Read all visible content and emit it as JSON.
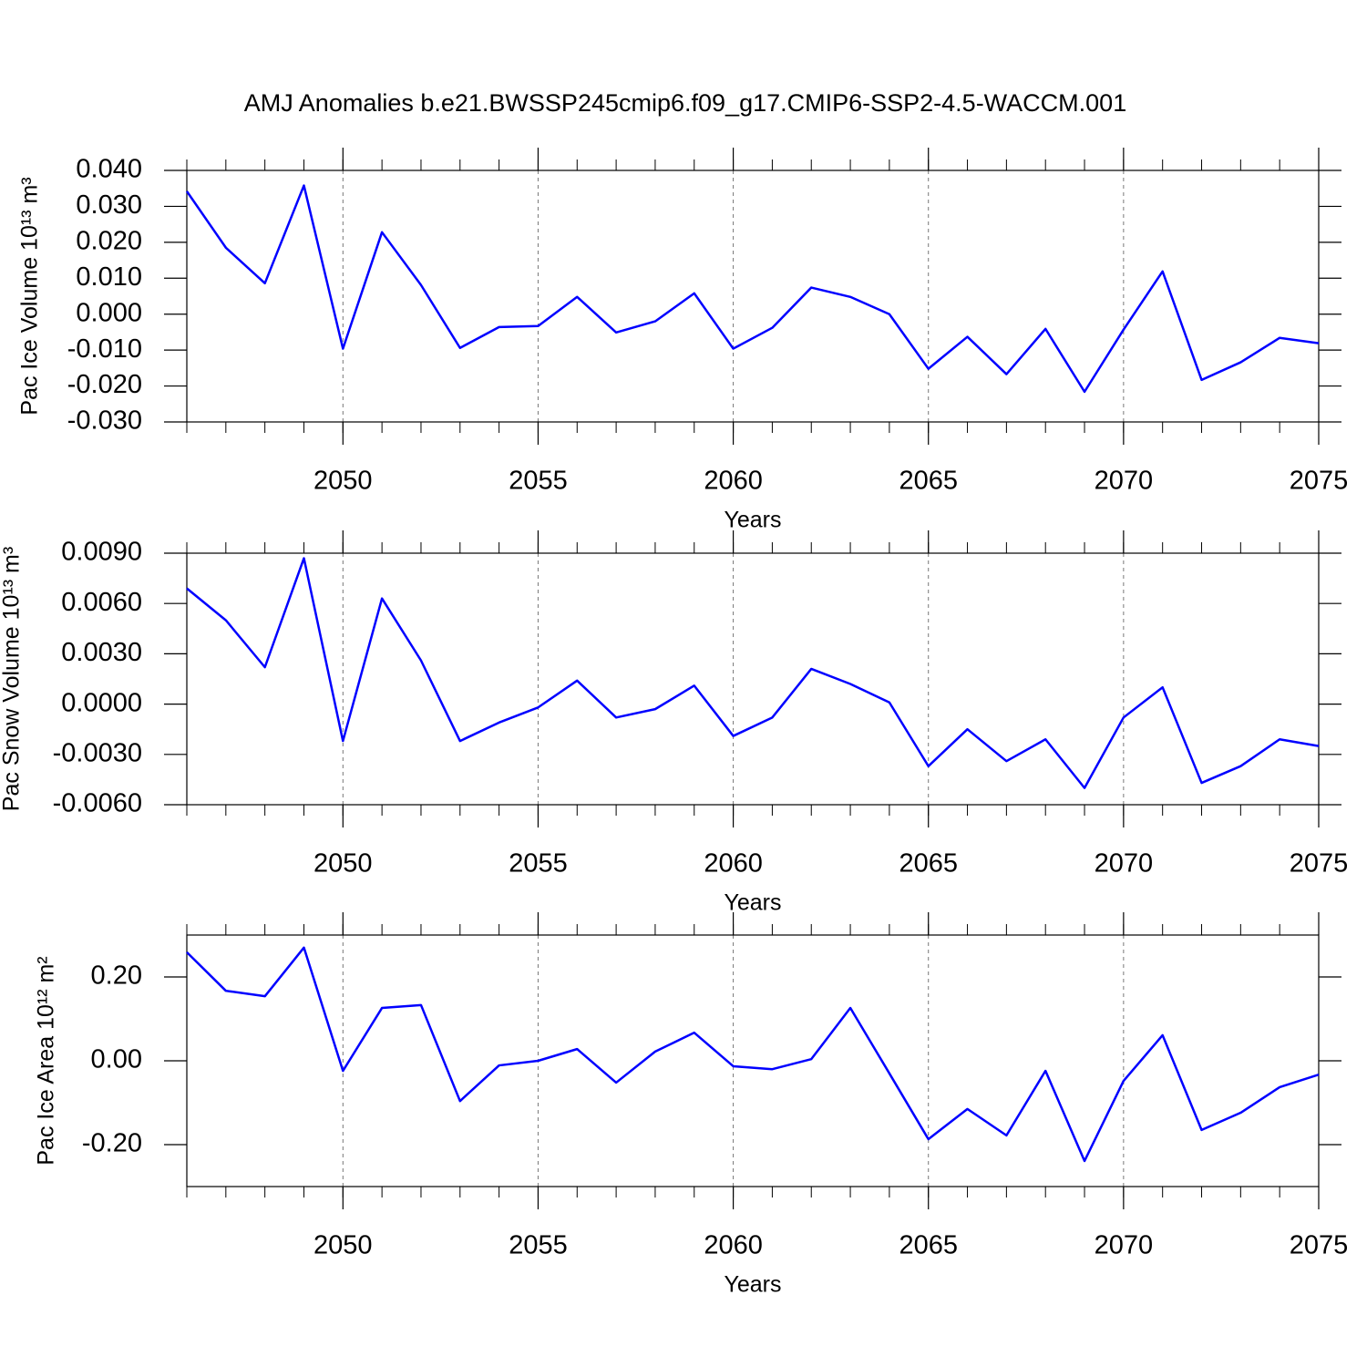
{
  "chart_data": [
    {
      "type": "line",
      "title": "AMJ Anomalies b.e21.BWSSP245cmip6.f09_g17.CMIP6-SSP2-4.5-WACCM.001",
      "ylabel": "Pac Ice Volume 10¹³ m³",
      "xlabel": "Years",
      "color": "#0000ff",
      "xgrid": true,
      "x": [
        2046,
        2047,
        2048,
        2049,
        2050,
        2051,
        2052,
        2053,
        2054,
        2055,
        2056,
        2057,
        2058,
        2059,
        2060,
        2061,
        2062,
        2063,
        2064,
        2065,
        2066,
        2067,
        2068,
        2069,
        2070,
        2071,
        2072,
        2073,
        2074,
        2075
      ],
      "values": [
        0.0342,
        0.0185,
        0.0086,
        0.0358,
        -0.0096,
        0.0228,
        0.0081,
        -0.0094,
        -0.0036,
        -0.0033,
        0.0048,
        -0.0051,
        -0.002,
        0.0058,
        -0.0096,
        -0.0038,
        0.0074,
        0.0048,
        0.0,
        -0.0152,
        -0.0063,
        -0.0167,
        -0.0041,
        -0.0216,
        -0.0043,
        0.0119,
        -0.0183,
        -0.0134,
        -0.0066,
        -0.0081
      ],
      "xlim": [
        2046,
        2075
      ],
      "xticks": [
        2050,
        2055,
        2060,
        2065,
        2070,
        2075
      ],
      "ylim": [
        -0.03,
        0.04
      ],
      "yticks": [
        {
          "value": 0.04,
          "label": "0.040"
        },
        {
          "value": 0.03,
          "label": "0.030"
        },
        {
          "value": 0.02,
          "label": "0.020"
        },
        {
          "value": 0.01,
          "label": "0.010"
        },
        {
          "value": 0,
          "label": "0.000"
        },
        {
          "value": -0.01,
          "label": "-0.010"
        },
        {
          "value": -0.02,
          "label": "-0.020"
        },
        {
          "value": -0.03,
          "label": "-0.030"
        }
      ]
    },
    {
      "type": "line",
      "ylabel": "Pac Snow Volume 10¹³ m³",
      "xlabel": "Years",
      "color": "#0000ff",
      "xgrid": true,
      "x": [
        2046,
        2047,
        2048,
        2049,
        2050,
        2051,
        2052,
        2053,
        2054,
        2055,
        2056,
        2057,
        2058,
        2059,
        2060,
        2061,
        2062,
        2063,
        2064,
        2065,
        2066,
        2067,
        2068,
        2069,
        2070,
        2071,
        2072,
        2073,
        2074,
        2075
      ],
      "values": [
        0.0069,
        0.005,
        0.0022,
        0.0087,
        -0.0022,
        0.0063,
        0.0026,
        -0.0022,
        -0.0011,
        -0.0002,
        0.0014,
        -0.0008,
        -0.0003,
        0.0011,
        -0.0019,
        -0.0008,
        0.0021,
        0.0012,
        0.0001,
        -0.0037,
        -0.0015,
        -0.0034,
        -0.0021,
        -0.005,
        -0.0008,
        0.001,
        -0.0047,
        -0.0037,
        -0.0021,
        -0.0025
      ],
      "xlim": [
        2046,
        2075
      ],
      "xticks": [
        2050,
        2055,
        2060,
        2065,
        2070,
        2075
      ],
      "ylim": [
        -0.006,
        0.009
      ],
      "yticks": [
        {
          "value": 0.009,
          "label": "0.0090"
        },
        {
          "value": 0.006,
          "label": "0.0060"
        },
        {
          "value": 0.003,
          "label": "0.0030"
        },
        {
          "value": 0,
          "label": "0.0000"
        },
        {
          "value": -0.003,
          "label": "-0.0030"
        },
        {
          "value": -0.006,
          "label": "-0.0060"
        }
      ]
    },
    {
      "type": "line",
      "ylabel": "Pac Ice Area 10¹² m²",
      "xlabel": "Years",
      "color": "#0000ff",
      "xgrid": true,
      "x": [
        2046,
        2047,
        2048,
        2049,
        2050,
        2051,
        2052,
        2053,
        2054,
        2055,
        2056,
        2057,
        2058,
        2059,
        2060,
        2061,
        2062,
        2063,
        2064,
        2065,
        2066,
        2067,
        2068,
        2069,
        2070,
        2071,
        2072,
        2073,
        2074,
        2075
      ],
      "values": [
        0.259,
        0.167,
        0.154,
        0.27,
        -0.024,
        0.126,
        0.133,
        -0.096,
        -0.011,
        0.0,
        0.028,
        -0.052,
        0.022,
        0.067,
        -0.013,
        -0.02,
        0.004,
        0.126,
        -0.03,
        -0.187,
        -0.115,
        -0.178,
        -0.024,
        -0.239,
        -0.048,
        0.061,
        -0.165,
        -0.124,
        -0.063,
        -0.033
      ],
      "xlim": [
        2046,
        2075
      ],
      "xticks": [
        2050,
        2055,
        2060,
        2065,
        2070,
        2075
      ],
      "ylim": [
        -0.3,
        0.3
      ],
      "yticks": [
        {
          "value": 0.2,
          "label": "0.20"
        },
        {
          "value": 0,
          "label": "0.00"
        },
        {
          "value": -0.2,
          "label": "-0.20"
        }
      ]
    }
  ]
}
